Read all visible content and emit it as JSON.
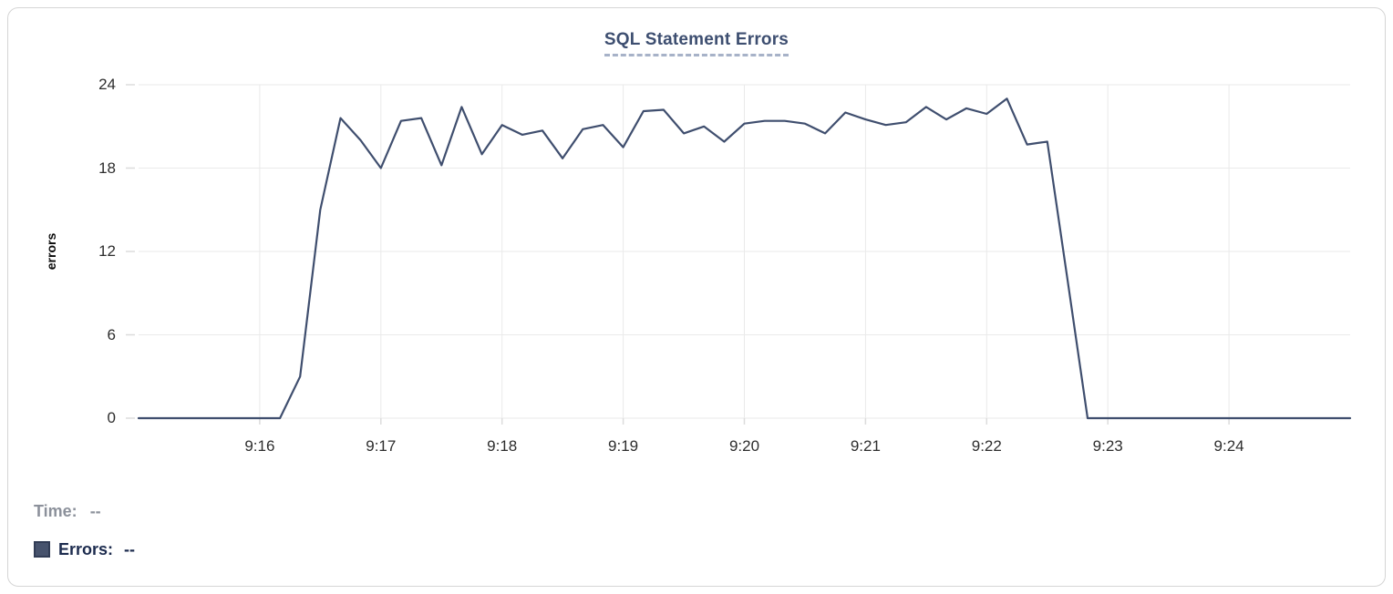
{
  "header": {
    "title": "SQL Statement Errors"
  },
  "legend": {
    "time_label": "Time:",
    "time_value": "--",
    "errors_label": "Errors:",
    "errors_value": "--"
  },
  "colors": {
    "line": "#3f4e6e",
    "grid": "#eaeaea",
    "axis_tick": "#dcdcdc",
    "tick_label": "#2d2d2d",
    "title_text": "#3d4e70",
    "title_underline": "#a7b2c8",
    "legend_time_text": "#8c919b",
    "legend_errors_text": "#1c2b4e",
    "legend_swatch": "#47536d",
    "card_border": "#d5d5d5"
  },
  "chart_data": {
    "type": "line",
    "title": "SQL Statement Errors",
    "xlabel": "",
    "ylabel": "errors",
    "ylim": [
      0,
      24
    ],
    "y_ticks": [
      24,
      18,
      12,
      6,
      0
    ],
    "grid": true,
    "legend_position": "bottom-left",
    "x_axis": {
      "start": "9:15:00",
      "end": "9:25:00",
      "total_seconds": 600,
      "ticks": [
        {
          "label": "9:16",
          "offset_s": 60
        },
        {
          "label": "9:17",
          "offset_s": 120
        },
        {
          "label": "9:18",
          "offset_s": 180
        },
        {
          "label": "9:19",
          "offset_s": 240
        },
        {
          "label": "9:20",
          "offset_s": 300
        },
        {
          "label": "9:21",
          "offset_s": 360
        },
        {
          "label": "9:22",
          "offset_s": 420
        },
        {
          "label": "9:23",
          "offset_s": 480
        },
        {
          "label": "9:24",
          "offset_s": 540
        }
      ]
    },
    "sample_interval_seconds": 10,
    "series": [
      {
        "name": "Errors",
        "color": "#3f4e6e",
        "x": [
          "9:15:00",
          "9:15:10",
          "9:15:20",
          "9:15:30",
          "9:15:40",
          "9:15:50",
          "9:16:00",
          "9:16:10",
          "9:16:20",
          "9:16:30",
          "9:16:40",
          "9:16:50",
          "9:17:00",
          "9:17:10",
          "9:17:20",
          "9:17:30",
          "9:17:40",
          "9:17:50",
          "9:18:00",
          "9:18:10",
          "9:18:20",
          "9:18:30",
          "9:18:40",
          "9:18:50",
          "9:19:00",
          "9:19:10",
          "9:19:20",
          "9:19:30",
          "9:19:40",
          "9:19:50",
          "9:20:00",
          "9:20:10",
          "9:20:20",
          "9:20:30",
          "9:20:40",
          "9:20:50",
          "9:21:00",
          "9:21:10",
          "9:21:20",
          "9:21:30",
          "9:21:40",
          "9:21:50",
          "9:22:00",
          "9:22:10",
          "9:22:20",
          "9:22:30",
          "9:22:40",
          "9:22:50",
          "9:23:00",
          "9:23:10",
          "9:23:20",
          "9:23:30",
          "9:23:40",
          "9:23:50",
          "9:24:00",
          "9:24:10",
          "9:24:20",
          "9:24:30",
          "9:24:40",
          "9:24:50",
          "9:25:00"
        ],
        "values": [
          0,
          0,
          0,
          0,
          0,
          0,
          0,
          0,
          3,
          15,
          21.6,
          20,
          18,
          21.4,
          21.6,
          18.2,
          22.4,
          19,
          21.1,
          20.4,
          20.7,
          18.7,
          20.8,
          21.1,
          19.5,
          22.1,
          22.2,
          20.5,
          21,
          19.9,
          21.2,
          21.4,
          21.4,
          21.2,
          20.5,
          22,
          21.5,
          21.1,
          21.3,
          22.4,
          21.5,
          22.3,
          21.9,
          23,
          19.7,
          19.9,
          10,
          0,
          0,
          0,
          0,
          0,
          0,
          0,
          0,
          0,
          0,
          0,
          0,
          0,
          0
        ]
      }
    ]
  }
}
